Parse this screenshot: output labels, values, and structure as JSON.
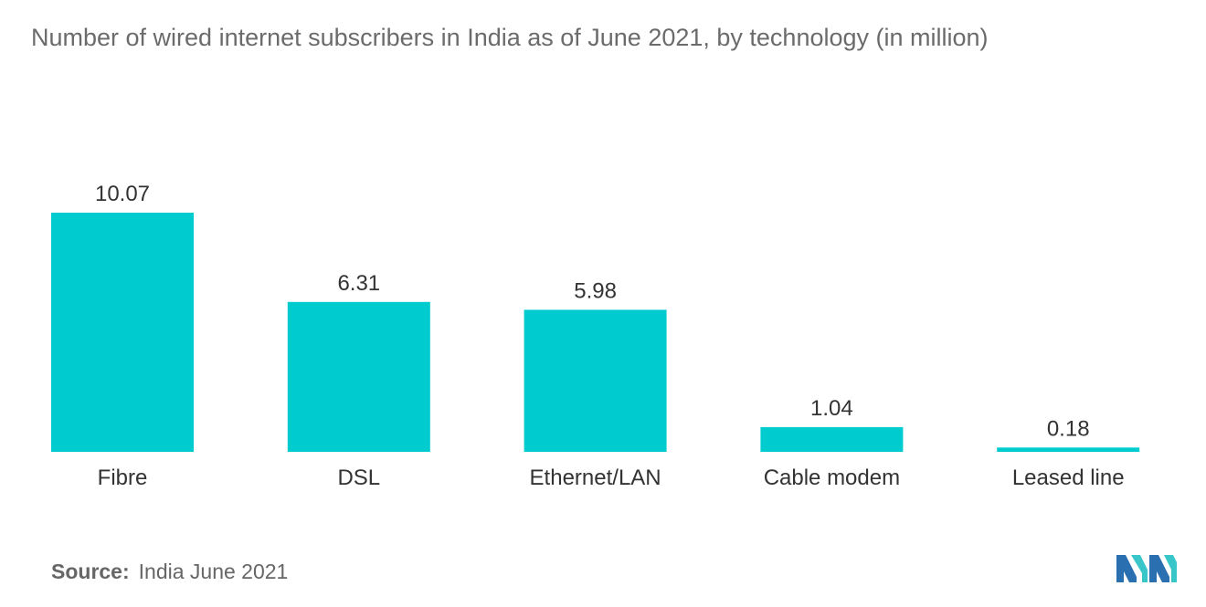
{
  "title": "Number of wired internet subscribers in India as of June 2021, by technology (in million)",
  "source": {
    "label": "Source:",
    "value": "India June 2021"
  },
  "colors": {
    "bar": "#00cccf",
    "text": "#333333",
    "muted": "#6b6b6b"
  },
  "chart_data": {
    "type": "bar",
    "title": "Number of wired internet subscribers in India as of June 2021, by technology (in million)",
    "categories": [
      "Fibre",
      "DSL",
      "Ethernet/LAN",
      "Cable modem",
      "Leased line"
    ],
    "values": [
      10.07,
      6.31,
      5.98,
      1.04,
      0.18
    ],
    "value_labels": [
      "10.07",
      "6.31",
      "5.98",
      "1.04",
      "0.18"
    ],
    "xlabel": "",
    "ylabel": "",
    "ylim": [
      0,
      10.07
    ],
    "grid": false,
    "legend": "none"
  }
}
